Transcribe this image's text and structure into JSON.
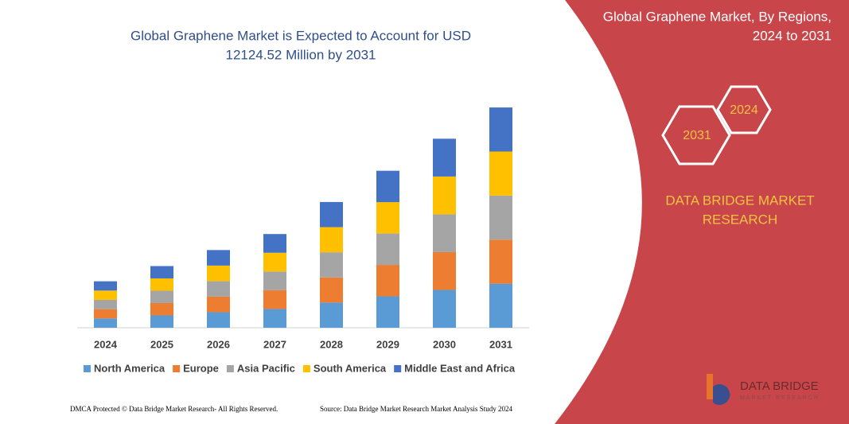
{
  "chart_data": {
    "type": "stacked-bar",
    "title": "Global Graphene Market is Expected to Account for USD",
    "subtitle": "12124.52 Million by 2031",
    "categories": [
      "2024",
      "2025",
      "2026",
      "2027",
      "2028",
      "2029",
      "2030",
      "2031"
    ],
    "series": [
      {
        "name": "North America",
        "color": "#5b9bd5",
        "values": [
          11.6,
          15.4,
          19.4,
          23.4,
          31.4,
          39.2,
          47.2,
          55
        ]
      },
      {
        "name": "Europe",
        "color": "#ed7d31",
        "values": [
          11.6,
          15.4,
          19.4,
          23.4,
          31.4,
          39.2,
          47.2,
          55
        ]
      },
      {
        "name": "Asia Pacific",
        "color": "#a5a5a5",
        "values": [
          11.6,
          15.4,
          19.4,
          23.4,
          31.4,
          39.2,
          47.2,
          55
        ]
      },
      {
        "name": "South America",
        "color": "#ffc000",
        "values": [
          11.6,
          15.4,
          19.4,
          23.4,
          31.4,
          39.2,
          47.2,
          55
        ]
      },
      {
        "name": "Middle East and Africa",
        "color": "#4472c4",
        "values": [
          11.6,
          15.4,
          19.4,
          23.4,
          31.4,
          39.2,
          47.2,
          55
        ]
      }
    ],
    "ylim": [
      0,
      290
    ],
    "legend": "bottom"
  },
  "panel": {
    "title_line1": "Global Graphene Market, By Regions,",
    "title_line2": "2024 to 2031",
    "hex_small": "2024",
    "hex_large": "2031",
    "brand_line1": "DATA BRIDGE MARKET",
    "brand_line2": "RESEARCH",
    "logo": "DATA BRIDGE",
    "logo_sub": "MARKET RESEARCH"
  },
  "footer": {
    "left": "DMCA Protected © Data Bridge Market Research- All Rights Reserved.",
    "right": "Source: Data Bridge Market Research  Market Analysis Study 2024"
  }
}
